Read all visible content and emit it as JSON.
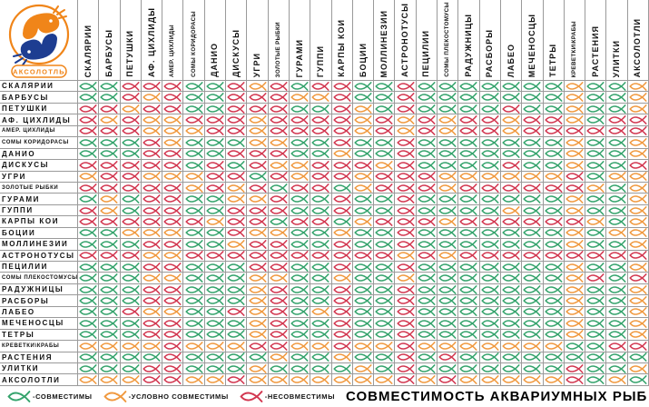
{
  "logo": {
    "text": "АКСОЛОТЛЬ"
  },
  "title": "СОВМЕСТИМОСТЬ АКВАРИУМНЫХ РЫБ",
  "legend": {
    "items": [
      {
        "key": "G",
        "label": "-СОВМЕСТИМЫ"
      },
      {
        "key": "O",
        "label": "-УСЛОВНО СОВМЕСТИМЫ"
      },
      {
        "key": "R",
        "label": "-НЕСОВМЕСТИМЫ"
      }
    ]
  },
  "chart_data": {
    "type": "heatmap",
    "title": "СОВМЕСТИМОСТЬ АКВАРИУМНЫХ РЫБ",
    "value_legend": {
      "G": "совместимы",
      "O": "условно совместимы",
      "R": "несовместимы"
    },
    "colors": {
      "G": "#35a36c",
      "O": "#f0993f",
      "R": "#d23750"
    },
    "categories": [
      "СКАЛЯРИИ",
      "БАРБУСЫ",
      "ПЕТУШКИ",
      "АФ. ЦИХЛИДЫ",
      "АМЕР. ЦИХЛИДЫ",
      "СОМЫ КОРИДОРАСЫ",
      "ДАНИО",
      "ДИСКУСЫ",
      "УГРИ",
      "ЗОЛОТЫЕ РЫБКИ",
      "ГУРАМИ",
      "ГУППИ",
      "КАРПЫ КОИ",
      "БОЦИИ",
      "МОЛЛИНЕЗИИ",
      "АСТРОНОТУСЫ",
      "ПЕЦИЛИИ",
      "СОМЫ ПЛЕКОСТОМУСЫ",
      "РАДУЖНИЦЫ",
      "РАСБОРЫ",
      "ЛАБЕО",
      "МЕЧЕНОСЦЫ",
      "ТЕТРЫ",
      "КРЕВЕТКИ\\КРАБЫ",
      "РАСТЕНИЯ",
      "УЛИТКИ",
      "АКСОЛОТЛИ"
    ],
    "matrix": [
      "GGRRRGGRORGRRGGRGGGGGGGOGGO",
      "GGRORGGRRROORGGRGGGGGGGOGGO",
      "RRORRGGRRRGGROGRGGGGRGGOGGO",
      "ROROORRRORRRRORORORRORROGRR",
      "RRROOORRORRRRORORORRORRRRRR",
      "GGGROGGGOOGGRGGRGGGGGGGOGGO",
      "GGGRRGGRRRGGOGGRGGGGGGGOGGO",
      "RRRRRGRGROORRRORGGGGRGGOGGR",
      "ORROOORRGRORRORRROOOOOORGOO",
      "RRRRRORORGRRGORRRORRRRRROGO",
      "GOGRRGGOORGGRGGRGGGGGGGOGGO",
      "ROGRRGGRRRGGRGGRGGGGOGGOGGO",
      "RRRRRRORRGRRGORRRORRRRRROGO",
      "GGOOOGGROOGGOGGRGGGGGGGOGOO",
      "GGGRRGGORRGGRGGRGGGGGGGOGGO",
      "RRROORRRRRRRRRRORORRRRRRRRR",
      "GGGRRGGGRRGGRGGRGGGGGGGOGGO",
      "GGGOOGGGOOGGOGGOGGGGGGGORGR",
      "GGGRRGGGORGGRGGRGGGGGGGOGGO",
      "GGGRRGGGORGGRGGRGGGGGGGOGGO",
      "GGROOGGRORGORGGRGGGGGGGOGGO",
      "GGGRRGGGORGGRGGRGGGGGGGOGGO",
      "GGGRRGGGORGGRGGRGGGGGGGOGGO",
      "OOOOROOORROOROOROOOOOOOGGRR",
      "GGGGRGGGGOGGOGGRGRGGGGGGGGG",
      "GGGRRGGGOGGGGOGRGGGGGGGRGGO",
      "OOORROOROOOOOOOROROOOOORGOG"
    ]
  }
}
